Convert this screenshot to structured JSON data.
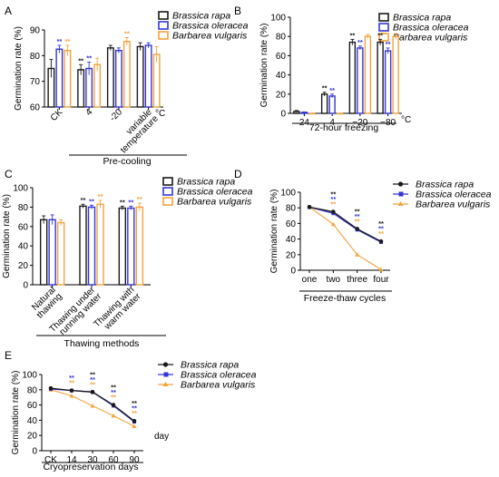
{
  "panels": {
    "A": {
      "letter": "A"
    },
    "B": {
      "letter": "B"
    },
    "C": {
      "letter": "C"
    },
    "D": {
      "letter": "D"
    },
    "E": {
      "letter": "E"
    }
  },
  "legend": {
    "series": [
      "Brassica rapa",
      "Brassica oleracea",
      "Barbarea vulgaris"
    ]
  },
  "colors": {
    "rapa": "#1a1a1a",
    "oleracea": "#3535d6",
    "vulgaris": "#f5a23c"
  },
  "chart_data": [
    {
      "id": "A",
      "type": "bar",
      "categories": [
        "CK",
        "4",
        "-20",
        "variable temperature"
      ],
      "unit_suffix": "°C",
      "series": [
        {
          "name": "Brassica rapa",
          "values": [
            75,
            74.5,
            83,
            83.5
          ],
          "errors": [
            3.5,
            2,
            1,
            1.5
          ]
        },
        {
          "name": "Brassica oleracea",
          "values": [
            82.5,
            75,
            82,
            84
          ],
          "errors": [
            1.5,
            2.5,
            1,
            1
          ]
        },
        {
          "name": "Barbarea vulgaris",
          "values": [
            82,
            76.5,
            85.5,
            80.5
          ],
          "errors": [
            2,
            2.5,
            1.5,
            3
          ]
        }
      ],
      "annotations": [
        "",
        "**",
        "**",
        "**",
        "**",
        "",
        "",
        "",
        "**"
      ],
      "ylabel": "Germination rate (%)",
      "xlabel": "Pre-cooling",
      "ylim": [
        60,
        90
      ],
      "yticks": [
        60,
        70,
        80,
        90
      ]
    },
    {
      "id": "B",
      "type": "bar",
      "categories": [
        "24",
        "4",
        "−20",
        "−80"
      ],
      "unit_suffix": "°C",
      "series": [
        {
          "name": "Brassica rapa",
          "values": [
            2,
            20,
            74,
            74
          ],
          "errors": [
            1,
            2,
            3,
            3
          ]
        },
        {
          "name": "Brassica oleracea",
          "values": [
            1,
            18,
            68,
            65
          ],
          "errors": [
            0.5,
            2,
            2,
            3
          ]
        },
        {
          "name": "Barbarea vulgaris",
          "values": [
            0,
            0,
            80,
            80
          ],
          "errors": [
            0,
            0,
            2,
            3
          ]
        }
      ],
      "annotations": [
        "",
        "",
        "",
        "**",
        "**",
        "",
        "**",
        "**",
        "",
        "**",
        "**",
        ""
      ],
      "ylabel": "Germination rate (%)",
      "xlabel": "72-hour freezing",
      "ylim": [
        0,
        100
      ],
      "yticks": [
        0,
        20,
        40,
        60,
        80,
        100
      ]
    },
    {
      "id": "C",
      "type": "bar",
      "categories": [
        "Natural thawing",
        "Thawing under running water",
        "Thawing with warm water"
      ],
      "series": [
        {
          "name": "Brassica rapa",
          "values": [
            67,
            81,
            79
          ],
          "errors": [
            4,
            2,
            2
          ]
        },
        {
          "name": "Brassica oleracea",
          "values": [
            67,
            80,
            79
          ],
          "errors": [
            5,
            2,
            2
          ]
        },
        {
          "name": "Barbarea vulgaris",
          "values": [
            64,
            83,
            80
          ],
          "errors": [
            3,
            4,
            4
          ]
        }
      ],
      "annotations": [
        "",
        "",
        "",
        "**",
        "**",
        "**",
        "**",
        "**",
        "**"
      ],
      "ylabel": "Germination rate (%)",
      "xlabel": "Thawing methods",
      "ylim": [
        0,
        100
      ],
      "yticks": [
        0,
        20,
        40,
        60,
        80,
        100
      ]
    },
    {
      "id": "D",
      "type": "line",
      "categories": [
        "one",
        "two",
        "three",
        "four"
      ],
      "series": [
        {
          "name": "Brassica rapa",
          "values": [
            81,
            75,
            53,
            37
          ]
        },
        {
          "name": "Brassica oleracea",
          "values": [
            81,
            73,
            52,
            36
          ]
        },
        {
          "name": "Barbarea vulgaris",
          "values": [
            81,
            59,
            20,
            1
          ]
        }
      ],
      "annotations": [
        "",
        "",
        "",
        "**",
        "**",
        "**",
        "**",
        "**",
        "**",
        "**",
        "**",
        "**"
      ],
      "ylabel": "Germination rate (%)",
      "xlabel": "Freeze-thaw cycles",
      "ylim": [
        0,
        100
      ],
      "yticks": [
        0,
        20,
        40,
        60,
        80,
        100
      ]
    },
    {
      "id": "E",
      "type": "line",
      "categories": [
        "CK",
        "14",
        "30",
        "60",
        "90"
      ],
      "unit_suffix": "day",
      "series": [
        {
          "name": "Brassica rapa",
          "values": [
            82,
            79,
            77,
            60,
            39
          ]
        },
        {
          "name": "Brassica oleracea",
          "values": [
            81,
            79,
            77,
            59,
            38
          ]
        },
        {
          "name": "Barbarea vulgaris",
          "values": [
            80,
            72,
            59,
            46,
            32
          ]
        }
      ],
      "annotations": [
        "",
        "",
        "",
        "",
        "**",
        "**",
        "**",
        "**",
        "**",
        "**",
        "**",
        "**",
        "**",
        "**",
        "**"
      ],
      "ylabel": "Germination rate (%)",
      "xlabel": "Cryopreservation days",
      "ylim": [
        0,
        100
      ],
      "yticks": [
        0,
        20,
        40,
        60,
        80,
        100
      ]
    }
  ]
}
